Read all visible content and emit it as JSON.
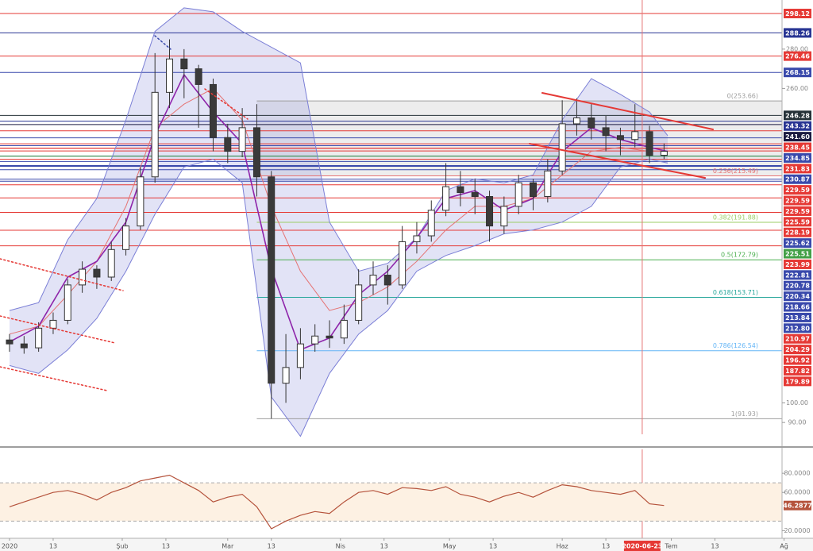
{
  "chart_data": [
    {
      "type": "candlestick",
      "x": [
        0,
        4,
        8,
        12,
        16,
        20,
        24,
        28,
        32,
        36,
        40,
        44,
        48,
        52,
        56,
        60,
        64,
        68,
        72,
        76,
        80,
        84,
        88,
        92,
        96,
        100,
        104,
        108,
        112,
        116,
        120,
        124,
        128,
        132,
        136,
        140,
        144,
        148,
        152,
        156,
        160,
        164,
        168,
        172,
        176,
        180
      ],
      "open": [
        132,
        130,
        128,
        138,
        142,
        160,
        168,
        164,
        178,
        190,
        215,
        258,
        275,
        270,
        262,
        235,
        228,
        240,
        215,
        110,
        118,
        130,
        134,
        133,
        142,
        160,
        165,
        160,
        182,
        185,
        198,
        210,
        207,
        205,
        190,
        200,
        212,
        205,
        218,
        242,
        245,
        240,
        236,
        234,
        238,
        226
      ],
      "high": [
        135,
        134,
        141,
        146,
        163,
        172,
        170,
        182,
        194,
        220,
        278,
        285,
        280,
        272,
        265,
        242,
        250,
        252,
        218,
        135,
        138,
        140,
        142,
        150,
        168,
        172,
        170,
        190,
        192,
        203,
        222,
        218,
        214,
        208,
        205,
        216,
        214,
        224,
        254,
        255,
        252,
        246,
        240,
        252,
        241,
        232
      ],
      "low": [
        126,
        125,
        126,
        135,
        140,
        156,
        158,
        162,
        175,
        188,
        212,
        250,
        255,
        240,
        228,
        222,
        225,
        205,
        92,
        100,
        112,
        126,
        128,
        130,
        140,
        155,
        150,
        158,
        176,
        182,
        195,
        200,
        196,
        182,
        186,
        196,
        198,
        202,
        216,
        236,
        234,
        228,
        226,
        230,
        222,
        224
      ],
      "close": [
        130,
        128,
        138,
        142,
        160,
        168,
        164,
        178,
        190,
        215,
        258,
        275,
        270,
        262,
        235,
        228,
        240,
        215,
        110,
        118,
        130,
        134,
        133,
        142,
        160,
        165,
        160,
        182,
        185,
        198,
        210,
        207,
        205,
        190,
        200,
        212,
        205,
        218,
        242,
        245,
        240,
        236,
        234,
        238,
        226,
        228
      ],
      "up_color": "#ffffff",
      "down_color": "#3a3a3a",
      "xlim": [
        -2.62,
        212.45
      ],
      "ylim": [
        84,
        305
      ],
      "xticks": [
        {
          "value": 0,
          "label": "2020"
        },
        {
          "value": 12,
          "label": "13"
        },
        {
          "value": 31,
          "label": "Şub"
        },
        {
          "value": 43,
          "label": "13"
        },
        {
          "value": 60,
          "label": "Mar"
        },
        {
          "value": 72,
          "label": "13"
        },
        {
          "value": 91,
          "label": "Nis"
        },
        {
          "value": 103,
          "label": "13"
        },
        {
          "value": 121,
          "label": "May"
        },
        {
          "value": 133,
          "label": "13"
        },
        {
          "value": 152,
          "label": "Haz"
        },
        {
          "value": 164,
          "label": "13"
        },
        {
          "value": 182,
          "label": "Tem"
        },
        {
          "value": 194,
          "label": "13"
        },
        {
          "value": 213,
          "label": "Ağ"
        }
      ],
      "crosshair": {
        "value": 174,
        "label": "2020-06-23"
      },
      "yticks": [
        {
          "value": 280,
          "label": "280.00"
        },
        {
          "value": 260,
          "label": "260.00"
        },
        {
          "value": 100,
          "label": "100.00"
        },
        {
          "value": 90,
          "label": "90.00"
        }
      ],
      "bollinger": {
        "x": [
          0,
          8,
          16,
          24,
          32,
          40,
          48,
          56,
          64,
          72,
          80,
          88,
          96,
          104,
          112,
          120,
          128,
          136,
          144,
          152,
          160,
          168,
          176,
          181
        ],
        "upper": [
          147,
          151,
          183,
          204,
          244,
          289,
          301,
          299,
          289,
          281,
          273,
          192,
          167,
          171,
          184,
          208,
          214,
          212,
          216,
          244,
          265,
          257,
          248,
          236
        ],
        "middle": [
          135,
          139,
          155,
          172,
          200,
          240,
          252,
          260,
          244,
          200,
          167,
          147,
          151,
          159,
          172,
          188,
          200,
          200,
          204,
          216,
          228,
          230,
          228,
          228
        ],
        "lower": [
          119,
          115,
          127,
          143,
          167,
          196,
          220,
          224,
          212,
          103,
          83,
          115,
          135,
          147,
          167,
          175,
          180,
          186,
          188,
          192,
          200,
          220,
          224,
          222
        ],
        "ema": [
          131,
          139,
          164,
          172,
          192,
          236,
          267,
          248,
          232,
          168,
          127,
          133,
          155,
          167,
          184,
          204,
          208,
          198,
          204,
          228,
          240,
          234,
          230,
          228
        ],
        "band_color": "#7b7fd6",
        "middle_color": "#e57373",
        "ema_color": "#8e24aa"
      },
      "price_levels": [
        {
          "value": 298.12,
          "color": "#e53935"
        },
        {
          "value": 288.26,
          "color": "#283593"
        },
        {
          "value": 276.46,
          "color": "#e53935"
        },
        {
          "value": 268.15,
          "color": "#3949ab"
        },
        {
          "value": 246.28,
          "color": "#263238"
        },
        {
          "value": 243.32,
          "color": "#283593"
        },
        {
          "value": 241.6,
          "label": "241.60",
          "color": "#1a1a40"
        },
        {
          "value": 238.45,
          "color": "#e53935"
        },
        {
          "value": 234.85,
          "color": "#3949ab"
        },
        {
          "value": 231.83,
          "color": "#e53935"
        },
        {
          "value": 230.87,
          "color": "#3949ab"
        },
        {
          "value": 229.59,
          "color": "#e53935"
        },
        {
          "value": 229.59,
          "color": "#e53935"
        },
        {
          "value": 229.59,
          "color": "#e53935"
        },
        {
          "value": 225.59,
          "color": "#e53935"
        },
        {
          "value": 228.19,
          "color": "#e53935"
        },
        {
          "value": 225.62,
          "color": "#3949ab"
        },
        {
          "value": 225.51,
          "color": "#43a047"
        },
        {
          "value": 223.99,
          "color": "#e53935"
        },
        {
          "value": 222.81,
          "color": "#3949ab"
        },
        {
          "value": 220.78,
          "color": "#3949ab"
        },
        {
          "value": 220.34,
          "color": "#3949ab"
        },
        {
          "value": 218.66,
          "color": "#3949ab"
        },
        {
          "value": 213.84,
          "color": "#3949ab"
        },
        {
          "value": 212.8,
          "label": "212.80",
          "color": "#3949ab"
        },
        {
          "value": 210.97,
          "color": "#e53935"
        },
        {
          "value": 204.29,
          "color": "#e53935"
        },
        {
          "value": 196.92,
          "color": "#e53935"
        },
        {
          "value": 187.82,
          "color": "#e53935"
        },
        {
          "value": 179.89,
          "color": "#e53935"
        }
      ],
      "fib": [
        {
          "value": 253.66,
          "label": "0(253.66)",
          "color": "#9e9e9e"
        },
        {
          "value": 215.49,
          "label": "0.236(215.49)",
          "color": "#e57373"
        },
        {
          "value": 191.88,
          "label": "0.382(191.88)",
          "color": "#9ccc65"
        },
        {
          "value": 172.79,
          "label": "0.5(172.79)",
          "color": "#4caf50"
        },
        {
          "value": 153.71,
          "label": "0.618(153.71)",
          "color": "#26a69a"
        },
        {
          "value": 126.54,
          "label": "0.786(126.54)",
          "color": "#64b5f6"
        },
        {
          "value": 91.93,
          "label": "1(91.93)",
          "color": "#9e9e9e"
        }
      ],
      "fib_start": 68
    },
    {
      "type": "line",
      "x": [
        0,
        4,
        8,
        12,
        16,
        20,
        24,
        28,
        32,
        36,
        40,
        44,
        48,
        52,
        56,
        60,
        64,
        68,
        72,
        76,
        80,
        84,
        88,
        92,
        96,
        100,
        104,
        108,
        112,
        116,
        120,
        124,
        128,
        132,
        136,
        140,
        144,
        148,
        152,
        156,
        160,
        164,
        168,
        172,
        176,
        180
      ],
      "values": [
        45,
        50,
        55,
        60,
        62,
        58,
        52,
        60,
        65,
        72,
        75,
        78,
        70,
        62,
        50,
        55,
        58,
        45,
        22,
        30,
        36,
        40,
        38,
        50,
        60,
        62,
        58,
        65,
        64,
        62,
        66,
        58,
        55,
        50,
        56,
        60,
        55,
        62,
        68,
        66,
        62,
        60,
        58,
        62,
        48,
        46.2877
      ],
      "color": "#b5533c",
      "ylim": [
        12,
        105
      ],
      "yticks": [
        {
          "value": 80,
          "label": "80.0000"
        },
        {
          "value": 60,
          "label": "60.0000"
        },
        {
          "value": 20,
          "label": "20.0000"
        }
      ],
      "band": [
        30,
        70
      ],
      "band_color": "#fdf1e3"
    }
  ]
}
